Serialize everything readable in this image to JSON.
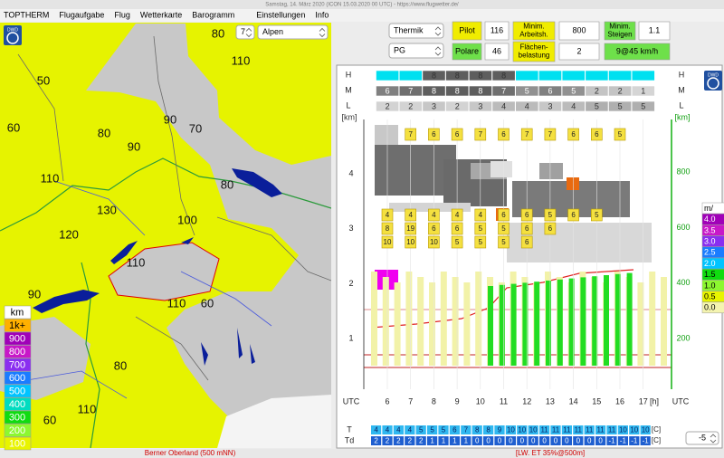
{
  "window_title": "Samstag, 14. März 2020 (ICON 15.03.2020 00 UTC) - https://www.flugwetter.de/",
  "menu": [
    "TOPTHERM",
    "Flugaufgabe",
    "Flug",
    "Wetterkarte",
    "Barogramm",
    "Einstellungen",
    "Info"
  ],
  "map": {
    "logo": "DWD",
    "hour_select": "7",
    "region_select": "Alpen",
    "labels": [
      "80",
      "110",
      "50",
      "60",
      "80",
      "90",
      "70",
      "90",
      "110",
      "80",
      "130",
      "100",
      "120",
      "110",
      "90",
      "110",
      "60",
      "80",
      "110",
      "60"
    ],
    "legend": [
      {
        "label": "km",
        "color": "#ffffff"
      },
      {
        "label": "1k+",
        "color": "#ffb000"
      },
      {
        "label": "900",
        "color": "#a000b8"
      },
      {
        "label": "800",
        "color": "#c818c8"
      },
      {
        "label": "700",
        "color": "#8a2ef0"
      },
      {
        "label": "600",
        "color": "#1a7cff"
      },
      {
        "label": "500",
        "color": "#00c4ff"
      },
      {
        "label": "400",
        "color": "#00dcc0"
      },
      {
        "label": "300",
        "color": "#10dc10"
      },
      {
        "label": "200",
        "color": "#8cf830"
      },
      {
        "label": "100",
        "color": "#e8f400"
      }
    ]
  },
  "controls": {
    "mode": "Thermik",
    "glider": "PG",
    "pilot_label": "Pilot",
    "pilot_value": "116",
    "min_work_label": [
      "Minim.",
      "Arbeitsh."
    ],
    "min_work_value": "800",
    "min_climb_label": [
      "Minim.",
      "Steigen"
    ],
    "min_climb_value": "1.1",
    "polare_label": "Polare",
    "polare_value": "46",
    "wing_load_label": [
      "Flächen-",
      "belastung"
    ],
    "wing_load_value": "2",
    "speed": "9@45 km/h"
  },
  "profile": {
    "logo": "DWD",
    "layers": [
      {
        "name": "H",
        "cells": [
          null,
          null,
          "8",
          "8",
          "8",
          "8",
          null,
          null,
          null,
          null,
          null,
          null
        ]
      },
      {
        "name": "M",
        "cells": [
          "6",
          "7",
          "8",
          "8",
          "8",
          "7",
          "5",
          "6",
          "5",
          "2",
          "2",
          "1"
        ]
      },
      {
        "name": "L",
        "cells": [
          "2",
          "2",
          "3",
          "2",
          "3",
          "4",
          "4",
          "3",
          "4",
          "5",
          "5",
          "5"
        ]
      }
    ],
    "left_unit": "[km]",
    "left_ticks": [
      "1",
      "2",
      "3",
      "4"
    ],
    "right_unit": "[km]",
    "right_ticks": [
      "200",
      "400",
      "600",
      "800"
    ],
    "time_label": "UTC",
    "hours": [
      "6",
      "7",
      "8",
      "9",
      "10",
      "11",
      "12",
      "13",
      "14",
      "15",
      "16",
      "17"
    ],
    "hour_unit": "[h]",
    "top_row": [
      "7",
      "6",
      "6",
      "7",
      "6",
      "7",
      "7",
      "6",
      "6",
      "5"
    ],
    "stack": [
      [
        "4",
        "8",
        "10"
      ],
      [
        "4",
        "19",
        "10"
      ],
      [
        "4",
        "6",
        "10"
      ],
      [
        "4",
        "6",
        "5"
      ],
      [
        "4",
        "5",
        "5"
      ],
      [
        "6",
        "5",
        "5"
      ],
      [
        "6",
        "6",
        "6"
      ],
      [
        "5",
        "6"
      ],
      [
        "6"
      ],
      [
        "5"
      ]
    ],
    "t_label": "T",
    "t_values": [
      "4",
      "4",
      "4",
      "4",
      "5",
      "5",
      "5",
      "6",
      "7",
      "8",
      "8",
      "9",
      "10",
      "10",
      "10",
      "11",
      "11",
      "11",
      "11",
      "11",
      "11",
      "11",
      "10",
      "10",
      "10"
    ],
    "td_label": "Td",
    "td_values": [
      "2",
      "2",
      "2",
      "2",
      "2",
      "1",
      "1",
      "1",
      "1",
      "0",
      "0",
      "0",
      "0",
      "0",
      "0",
      "0",
      "0",
      "0",
      "0",
      "0",
      "0",
      "-1",
      "-1",
      "-1",
      "-1"
    ],
    "unit": "[C]",
    "offset_select": "-5",
    "side_legend": [
      {
        "label": "m/",
        "color": "#ffffff"
      },
      {
        "label": "4.0",
        "color": "#a000b8"
      },
      {
        "label": "3.5",
        "color": "#c818c8"
      },
      {
        "label": "3.0",
        "color": "#8a2ef0"
      },
      {
        "label": "2.5",
        "color": "#1a7cff"
      },
      {
        "label": "2.0",
        "color": "#00c4ff"
      },
      {
        "label": "1.5",
        "color": "#10dc10"
      },
      {
        "label": "1.0",
        "color": "#8cf830"
      },
      {
        "label": "0.5",
        "color": "#e8f400"
      },
      {
        "label": "0.0",
        "color": "#f4f4b0"
      }
    ]
  },
  "status": {
    "location": "Berner Oberland (500 mNN)",
    "info": "[LW. ET  35%@500m]"
  }
}
